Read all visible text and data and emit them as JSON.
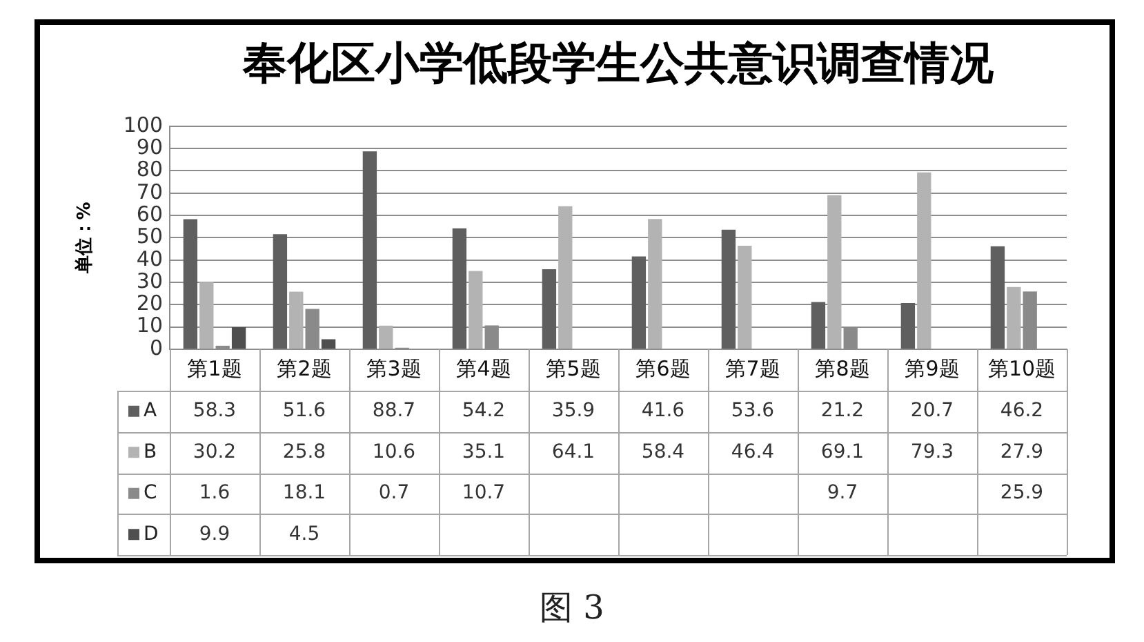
{
  "chart_data": {
    "type": "bar",
    "title": "奉化区小学低段学生公共意识调查情况",
    "ylabel": "单位：%",
    "annotations": [
      "图 3"
    ],
    "categories": [
      "第1题",
      "第2题",
      "第3题",
      "第4题",
      "第5题",
      "第6题",
      "第7题",
      "第8题",
      "第9题",
      "第10题"
    ],
    "series": [
      {
        "name": "A",
        "color": "#5f5f5f",
        "values": [
          58.3,
          51.6,
          88.7,
          54.2,
          35.9,
          41.6,
          53.6,
          21.2,
          20.7,
          46.2
        ]
      },
      {
        "name": "B",
        "color": "#b3b3b3",
        "values": [
          30.2,
          25.8,
          10.6,
          35.1,
          64.1,
          58.4,
          46.4,
          69.1,
          79.3,
          27.9
        ]
      },
      {
        "name": "C",
        "color": "#8a8a8a",
        "values": [
          1.6,
          18.1,
          0.7,
          10.7,
          null,
          null,
          null,
          9.7,
          null,
          25.9
        ]
      },
      {
        "name": "D",
        "color": "#4f4f4f",
        "values": [
          9.9,
          4.5,
          null,
          null,
          null,
          null,
          null,
          null,
          null,
          null
        ]
      }
    ],
    "ylim": [
      0,
      100
    ],
    "yticks": [
      0,
      10,
      20,
      30,
      40,
      50,
      60,
      70,
      80,
      90,
      100
    ],
    "grid": "y",
    "legend": "bottom left",
    "data_labels": true
  }
}
